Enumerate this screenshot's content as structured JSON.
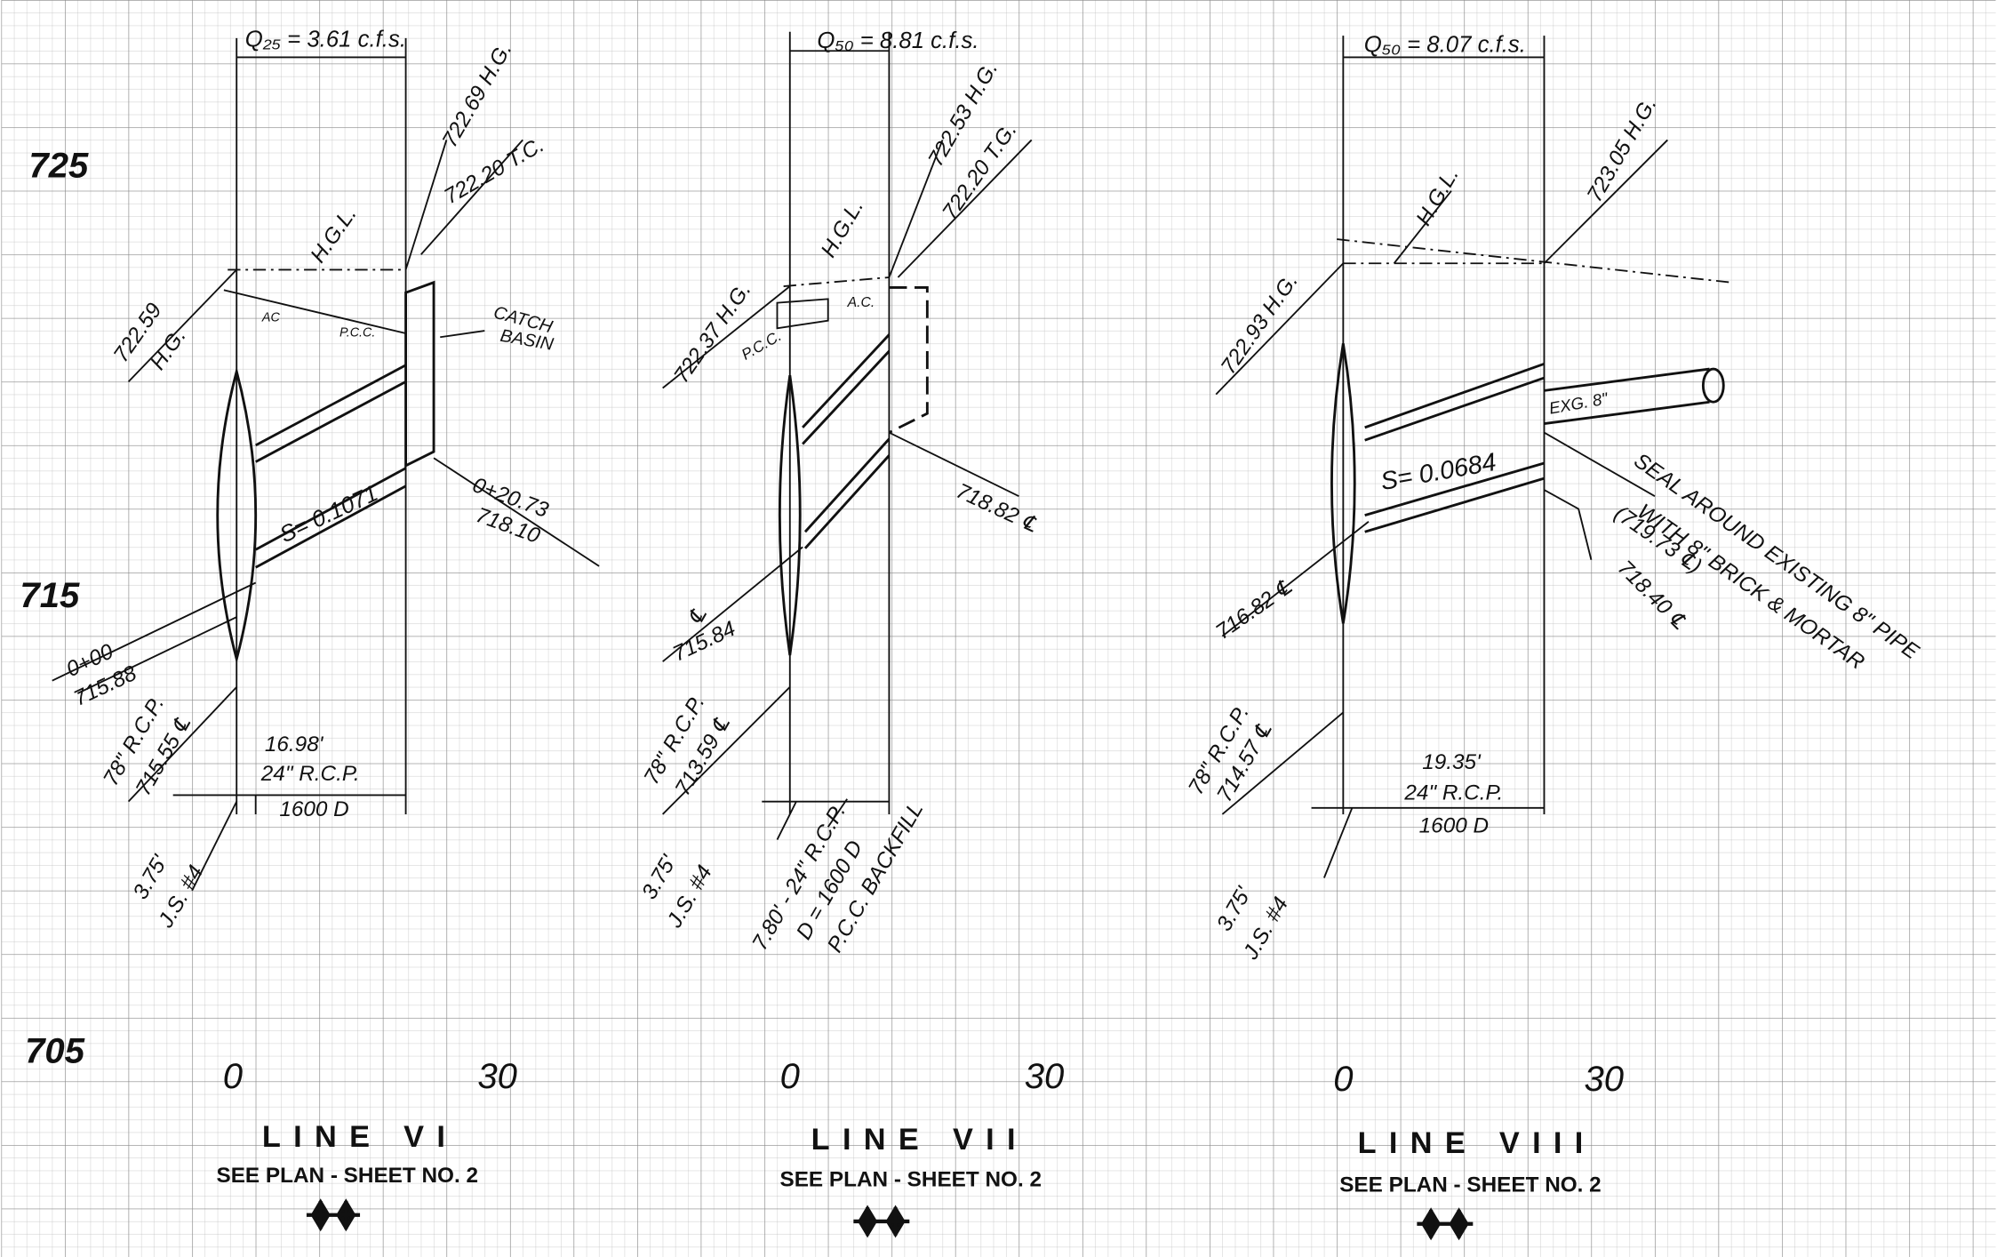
{
  "elevations": [
    "725",
    "715",
    "705"
  ],
  "profiles": [
    {
      "flow": "Q₂₅ = 3.61 c.f.s.",
      "labels": [
        "722.69 H.G.",
        "722.20 T.C.",
        "H.G.L.",
        "722.59",
        "H.G.",
        "AC",
        "P.C.C.",
        "CATCH",
        "BASIN",
        "S= 0.1071",
        "0+20.73",
        "718.10",
        "0+00",
        "715.88",
        "78\" R.C.P.",
        "715.55 ℄",
        "16.98'",
        "24\" R.C.P.",
        "1600 D",
        "3.75'",
        "J.S. #4"
      ],
      "stations": [
        "0",
        "30"
      ],
      "title": "LINE VI",
      "reference": "SEE PLAN - SHEET NO. 2"
    },
    {
      "flow": "Q₅₀ = 8.81 c.f.s.",
      "labels": [
        "722.53 H.G.",
        "722.20 T.G.",
        "H.G.L.",
        "722.37 H.G.",
        "P.C.C.",
        "A.C.",
        "718.82 ℄",
        "℄",
        "715.84",
        "78\" R.C.P.",
        "713.59 ℄",
        "3.75'",
        "J.S. #4",
        "7.80' - 24\" R.C.P.",
        "D = 1600 D",
        "P.C.C. BACKFILL"
      ],
      "stations": [
        "0",
        "30"
      ],
      "title": "LINE VII",
      "reference": "SEE PLAN - SHEET NO. 2"
    },
    {
      "flow": "Q₅₀ = 8.07 c.f.s.",
      "labels": [
        "723.05 H.G.",
        "H.G.L.",
        "722.93 H.G.",
        "EXG. 8\"",
        "S= 0.0684",
        "SEAL AROUND EXISTING 8\" PIPE",
        "WITH 8\" BRICK & MORTAR",
        "(719.73 ℄)",
        "718.40 ℄",
        "716.82 ℄",
        "78\" R.C.P.",
        "714.57 ℄",
        "19.35'",
        "24\" R.C.P.",
        "1600 D",
        "3.75'",
        "J.S. #4"
      ],
      "stations": [
        "0",
        "30"
      ],
      "title": "LINE VIII",
      "reference": "SEE PLAN - SHEET NO. 2"
    }
  ]
}
